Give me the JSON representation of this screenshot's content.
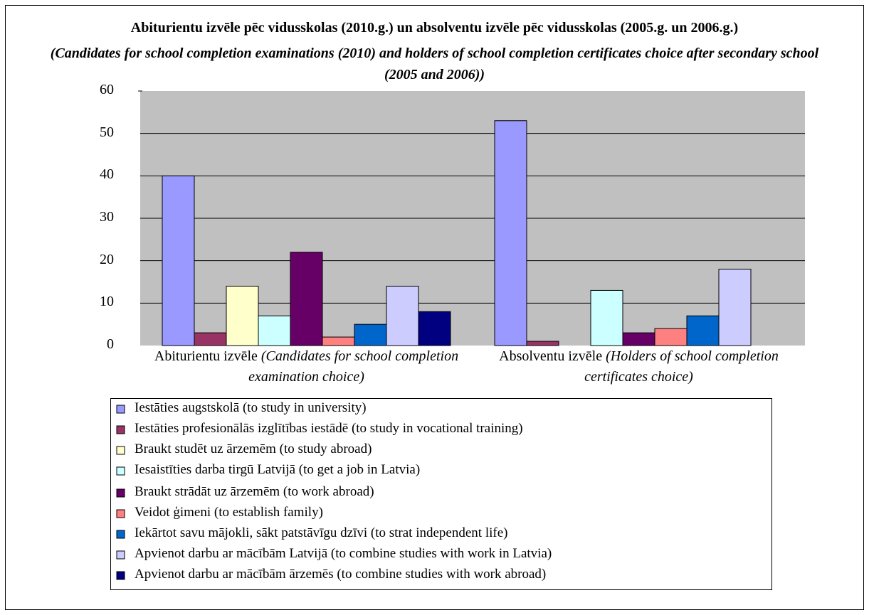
{
  "chart_data": {
    "type": "bar",
    "title": "Abiturientu izvēle pēc vidusskolas (2010.g.) un absolventu izvēle pēc vidusskolas (2005.g. un 2006.g.)",
    "subtitle": "(Candidates for school completion examinations (2010) and holders of school completion certificates choice after secondary school (2005 and 2006))",
    "categories": [
      "Abiturientu izvēle (Candidates for school completion examination choice)",
      "Absolventu izvēle (Holders of school completion certificates choice)"
    ],
    "series": [
      {
        "name": "Iestāties augstskolā (to study in university)",
        "color": "#9999ff",
        "values": [
          40,
          53
        ]
      },
      {
        "name": "Iestāties profesionālās izglītības iestādē (to study in vocational training)",
        "color": "#993366",
        "values": [
          3,
          1
        ]
      },
      {
        "name": "Braukt studēt uz ārzemēm (to study abroad)",
        "color": "#ffffcc",
        "values": [
          14,
          null
        ]
      },
      {
        "name": "Iesaistīties darba tirgū Latvijā (to get a job in Latvia)",
        "color": "#ccffff",
        "values": [
          7,
          13
        ]
      },
      {
        "name": "Braukt strādāt uz ārzemēm (to work abroad)",
        "color": "#660066",
        "values": [
          22,
          3
        ]
      },
      {
        "name": "Veidot ģimeni (to establish family)",
        "color": "#ff8080",
        "values": [
          2,
          4
        ]
      },
      {
        "name": "Iekārtot savu mājokli, sākt patstāvīgu dzīvi (to strat independent life)",
        "color": "#0066cc",
        "values": [
          5,
          7
        ]
      },
      {
        "name": "Apvienot darbu ar mācībām Latvijā (to combine studies with work in Latvia)",
        "color": "#ccccff",
        "values": [
          14,
          18
        ]
      },
      {
        "name": "Apvienot darbu ar mācībām ārzemēs (to combine studies with work abroad)",
        "color": "#000080",
        "values": [
          8,
          null
        ]
      }
    ],
    "ylim": [
      0,
      60
    ],
    "yticks": [
      0,
      10,
      20,
      30,
      40,
      50,
      60
    ],
    "grid": true,
    "plot_color": "#c0c0c0"
  }
}
